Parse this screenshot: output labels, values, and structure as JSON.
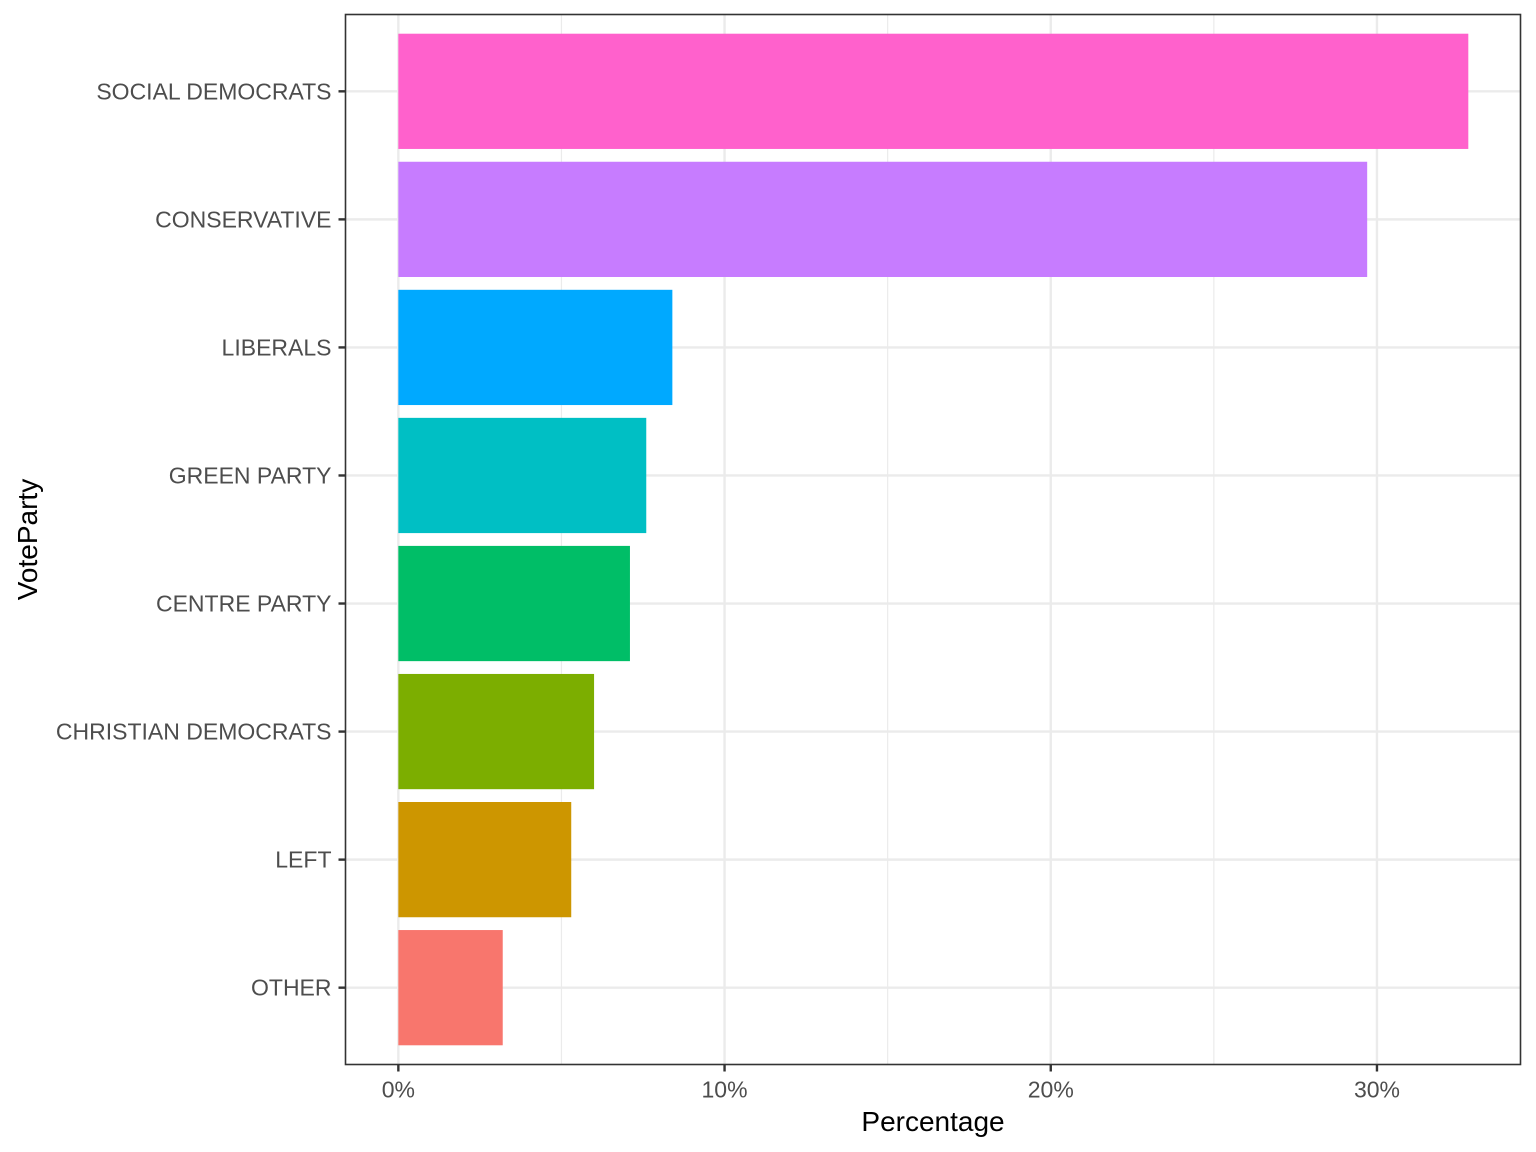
{
  "chart_data": {
    "type": "bar",
    "orientation": "horizontal",
    "title": "",
    "xlabel": "Percentage",
    "ylabel": "VoteParty",
    "xlim": [
      -1.62,
      34.4
    ],
    "x_ticks": [
      0,
      10,
      20,
      30
    ],
    "x_tick_labels": [
      "0%",
      "10%",
      "20%",
      "30%"
    ],
    "grid": true,
    "legend": "none",
    "categories": [
      "SOCIAL DEMOCRATS",
      "CONSERVATIVE",
      "LIBERALS",
      "GREEN PARTY",
      "CENTRE PARTY",
      "CHRISTIAN DEMOCRATS",
      "LEFT",
      "OTHER"
    ],
    "values": [
      32.8,
      29.7,
      8.4,
      7.6,
      7.1,
      6.0,
      5.3,
      3.2
    ],
    "colors": [
      "#FF61CC",
      "#C77CFF",
      "#00A9FF",
      "#00BFC4",
      "#00BE67",
      "#7CAE00",
      "#CD9600",
      "#F8766D"
    ]
  }
}
